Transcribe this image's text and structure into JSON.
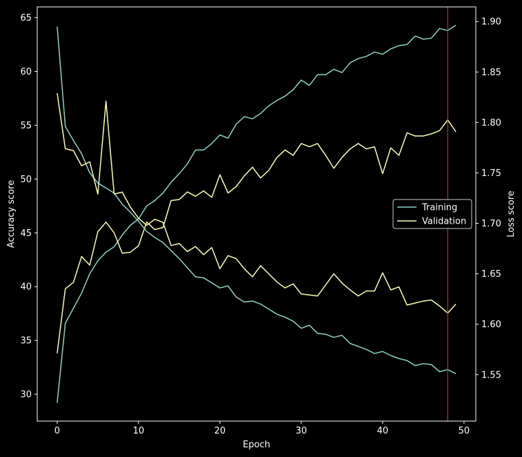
{
  "chart_data": {
    "type": "line",
    "xlabel": "Epoch",
    "ylabel_left": "Accuracy score",
    "ylabel_right": "Loss score",
    "xlim": [
      -2.45,
      51.45
    ],
    "ylim_left": [
      27.5,
      66
    ],
    "ylim_right": [
      1.504,
      1.9145
    ],
    "x_ticks": [
      0,
      10,
      20,
      30,
      40,
      50
    ],
    "y_left_ticks": [
      30,
      35,
      40,
      45,
      50,
      55,
      60,
      65
    ],
    "y_right_ticks": [
      1.55,
      1.6,
      1.65,
      1.7,
      1.75,
      1.8,
      1.85,
      1.9
    ],
    "y_right_tick_labels": [
      "1.55",
      "1.60",
      "1.65",
      "1.70",
      "1.75",
      "1.80",
      "1.85",
      "1.90"
    ],
    "vline_x": 48,
    "legend_position": "center-right",
    "series": [
      {
        "name": "Training",
        "axis": "left",
        "color": "#8dd3c7",
        "values": [
          29.2,
          36.6,
          38.0,
          39.4,
          41.2,
          42.4,
          43.2,
          43.7,
          44.8,
          45.7,
          46.3,
          47.5,
          48.0,
          48.7,
          49.7,
          50.5,
          51.4,
          52.7,
          52.7,
          53.3,
          54.1,
          53.8,
          55.1,
          55.8,
          55.6,
          56.1,
          56.8,
          57.3,
          57.7,
          58.3,
          59.2,
          58.7,
          59.7,
          59.7,
          60.2,
          59.9,
          60.8,
          61.2,
          61.4,
          61.8,
          61.6,
          62.1,
          62.4,
          62.5,
          63.3,
          63.0,
          63.1,
          64.0,
          63.8,
          64.3
        ]
      },
      {
        "name": "Validation",
        "axis": "left",
        "color": "#ffffb3",
        "values": [
          33.8,
          39.8,
          40.4,
          42.8,
          42.0,
          45.1,
          46.0,
          45.0,
          43.1,
          43.2,
          43.8,
          46.0,
          45.3,
          45.5,
          48.0,
          48.1,
          48.8,
          48.4,
          48.9,
          48.3,
          50.4,
          48.7,
          49.3,
          50.3,
          51.1,
          50.1,
          50.8,
          52.0,
          52.7,
          52.2,
          53.3,
          53.0,
          53.3,
          52.2,
          51.0,
          52.0,
          52.8,
          53.3,
          52.8,
          53.0,
          50.5,
          52.9,
          52.2,
          54.3,
          54.0,
          54.0,
          54.2,
          54.5,
          55.5,
          54.4
        ]
      },
      {
        "name": "Training",
        "axis": "right",
        "color": "#8dd3c7",
        "values": [
          1.895,
          1.796,
          1.782,
          1.769,
          1.75,
          1.74,
          1.735,
          1.73,
          1.719,
          1.711,
          1.702,
          1.692,
          1.686,
          1.681,
          1.673,
          1.665,
          1.656,
          1.647,
          1.646,
          1.641,
          1.636,
          1.638,
          1.627,
          1.622,
          1.623,
          1.62,
          1.615,
          1.61,
          1.607,
          1.603,
          1.596,
          1.599,
          1.591,
          1.59,
          1.587,
          1.589,
          1.581,
          1.578,
          1.575,
          1.571,
          1.573,
          1.569,
          1.566,
          1.564,
          1.559,
          1.561,
          1.56,
          1.553,
          1.555,
          1.551
        ]
      },
      {
        "name": "Validation",
        "axis": "right",
        "color": "#ffffb3",
        "values": [
          1.829,
          1.774,
          1.772,
          1.757,
          1.761,
          1.729,
          1.821,
          1.729,
          1.731,
          1.716,
          1.705,
          1.698,
          1.704,
          1.701,
          1.678,
          1.68,
          1.672,
          1.677,
          1.669,
          1.676,
          1.655,
          1.668,
          1.665,
          1.655,
          1.647,
          1.658,
          1.65,
          1.642,
          1.636,
          1.64,
          1.63,
          1.629,
          1.628,
          1.639,
          1.65,
          1.641,
          1.634,
          1.628,
          1.633,
          1.633,
          1.651,
          1.634,
          1.637,
          1.619,
          1.621,
          1.623,
          1.624,
          1.618,
          1.611,
          1.62
        ]
      }
    ]
  }
}
